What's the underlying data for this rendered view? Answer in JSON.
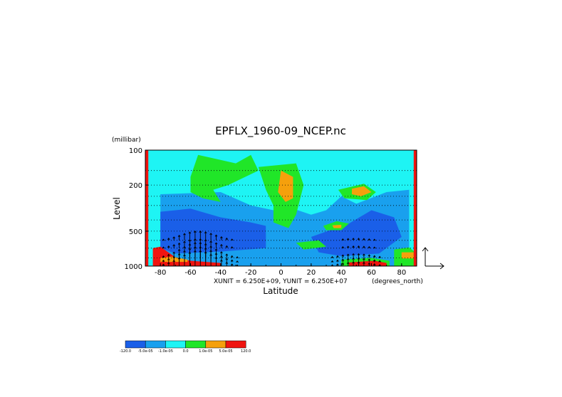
{
  "chart_data": {
    "type": "heatmap",
    "title": "EPFLX_1960-09_NCEP.nc",
    "xlabel": "Latitude",
    "ylabel": "Level",
    "yunits": "(millibar)",
    "xunits": "(degrees_north)",
    "x_ticks": [
      "-80",
      "-60",
      "-40",
      "-20",
      "0",
      "20",
      "40",
      "60",
      "80"
    ],
    "x_tick_values": [
      -80,
      -60,
      -40,
      -20,
      0,
      20,
      40,
      60,
      80
    ],
    "y_ticks": [
      "100",
      "200",
      "500",
      "1000"
    ],
    "y_tick_values": [
      100,
      200,
      500,
      1000
    ],
    "xlim": [
      -90,
      90
    ],
    "ylim": [
      1000,
      100
    ],
    "y_scale": "log",
    "vector_scale_text": "XUNIT = 6.250E+09, YUNIT = 6.250E+07",
    "colorbar": {
      "colors": [
        "#1a5fe8",
        "#19a0ee",
        "#1ef4f4",
        "#20e628",
        "#f5a00c",
        "#f01410"
      ],
      "labels": [
        "-120.0",
        "-5.0e-05",
        "-1.0e-05",
        "0.0",
        "1.0e-05",
        "5.0e-05",
        "120.0"
      ]
    },
    "regions": [
      {
        "level": 2,
        "pts": [
          [
            -90,
            100
          ],
          [
            90,
            100
          ],
          [
            90,
            1000
          ],
          [
            -90,
            1000
          ]
        ]
      },
      {
        "level": 1,
        "pts": [
          [
            -80,
            240
          ],
          [
            -40,
            230
          ],
          [
            -20,
            300
          ],
          [
            -5,
            330
          ],
          [
            5,
            310
          ],
          [
            20,
            360
          ],
          [
            30,
            330
          ],
          [
            40,
            250
          ],
          [
            50,
            290
          ],
          [
            70,
            230
          ],
          [
            85,
            220
          ],
          [
            85,
            1000
          ],
          [
            -80,
            1000
          ]
        ]
      },
      {
        "level": 0,
        "pts": [
          [
            -80,
            340
          ],
          [
            -60,
            320
          ],
          [
            -40,
            380
          ],
          [
            -20,
            420
          ],
          [
            -10,
            450
          ],
          [
            -10,
            700
          ],
          [
            -40,
            750
          ],
          [
            -70,
            780
          ],
          [
            -80,
            700
          ]
        ]
      },
      {
        "level": 0,
        "pts": [
          [
            20,
            560
          ],
          [
            45,
            430
          ],
          [
            60,
            330
          ],
          [
            75,
            380
          ],
          [
            80,
            560
          ],
          [
            65,
            780
          ],
          [
            40,
            820
          ],
          [
            25,
            760
          ]
        ]
      },
      {
        "level": 1,
        "pts": [
          [
            -10,
            450
          ],
          [
            5,
            420
          ],
          [
            10,
            480
          ],
          [
            0,
            560
          ],
          [
            -10,
            520
          ]
        ]
      },
      {
        "level": 3,
        "pts": [
          [
            -55,
            110
          ],
          [
            -42,
            120
          ],
          [
            -30,
            130
          ],
          [
            -20,
            110
          ],
          [
            -15,
            150
          ],
          [
            -35,
            200
          ],
          [
            -45,
            220
          ],
          [
            -40,
            280
          ],
          [
            -52,
            260
          ],
          [
            -60,
            230
          ],
          [
            -60,
            170
          ]
        ]
      },
      {
        "level": 3,
        "pts": [
          [
            -15,
            140
          ],
          [
            10,
            130
          ],
          [
            15,
            200
          ],
          [
            10,
            360
          ],
          [
            5,
            470
          ],
          [
            -5,
            420
          ],
          [
            -5,
            300
          ],
          [
            -10,
            220
          ]
        ]
      },
      {
        "level": 4,
        "pts": [
          [
            0,
            150
          ],
          [
            8,
            170
          ],
          [
            8,
            260
          ],
          [
            3,
            280
          ],
          [
            -2,
            230
          ]
        ]
      },
      {
        "level": 3,
        "pts": [
          [
            38,
            220
          ],
          [
            55,
            195
          ],
          [
            63,
            230
          ],
          [
            57,
            270
          ],
          [
            42,
            260
          ]
        ]
      },
      {
        "level": 4,
        "pts": [
          [
            47,
            215
          ],
          [
            55,
            205
          ],
          [
            60,
            230
          ],
          [
            53,
            250
          ],
          [
            47,
            240
          ]
        ]
      },
      {
        "level": 3,
        "pts": [
          [
            28,
            450
          ],
          [
            37,
            410
          ],
          [
            45,
            430
          ],
          [
            40,
            490
          ],
          [
            30,
            490
          ]
        ]
      },
      {
        "level": 4,
        "pts": [
          [
            34,
            445
          ],
          [
            40,
            440
          ],
          [
            40,
            470
          ],
          [
            35,
            470
          ]
        ]
      },
      {
        "level": 3,
        "pts": [
          [
            10,
            630
          ],
          [
            25,
            600
          ],
          [
            30,
            680
          ],
          [
            15,
            720
          ]
        ]
      },
      {
        "level": 3,
        "pts": [
          [
            75,
            720
          ],
          [
            85,
            690
          ],
          [
            90,
            780
          ],
          [
            90,
            1000
          ],
          [
            75,
            1000
          ]
        ]
      },
      {
        "level": 4,
        "pts": [
          [
            80,
            760
          ],
          [
            88,
            760
          ],
          [
            88,
            860
          ],
          [
            80,
            860
          ]
        ]
      },
      {
        "level": 3,
        "pts": [
          [
            40,
            880
          ],
          [
            60,
            850
          ],
          [
            72,
            900
          ],
          [
            72,
            1000
          ],
          [
            40,
            1000
          ]
        ]
      },
      {
        "level": 5,
        "pts": [
          [
            45,
            930
          ],
          [
            62,
            900
          ],
          [
            70,
            940
          ],
          [
            70,
            1000
          ],
          [
            45,
            1000
          ]
        ]
      },
      {
        "level": 5,
        "pts": [
          [
            -85,
            700
          ],
          [
            -80,
            680
          ],
          [
            -70,
            840
          ],
          [
            -60,
            900
          ],
          [
            -40,
            940
          ],
          [
            -40,
            1000
          ],
          [
            -85,
            1000
          ]
        ]
      },
      {
        "level": 4,
        "pts": [
          [
            -80,
            850
          ],
          [
            -72,
            830
          ],
          [
            -62,
            880
          ],
          [
            -62,
            920
          ],
          [
            -80,
            920
          ]
        ]
      },
      {
        "level": 5,
        "pts": [
          [
            -90,
            100
          ],
          [
            -88,
            100
          ],
          [
            -88,
            1000
          ],
          [
            -90,
            1000
          ]
        ]
      },
      {
        "level": 5,
        "pts": [
          [
            88,
            100
          ],
          [
            90,
            100
          ],
          [
            90,
            1000
          ],
          [
            88,
            1000
          ]
        ]
      }
    ]
  }
}
